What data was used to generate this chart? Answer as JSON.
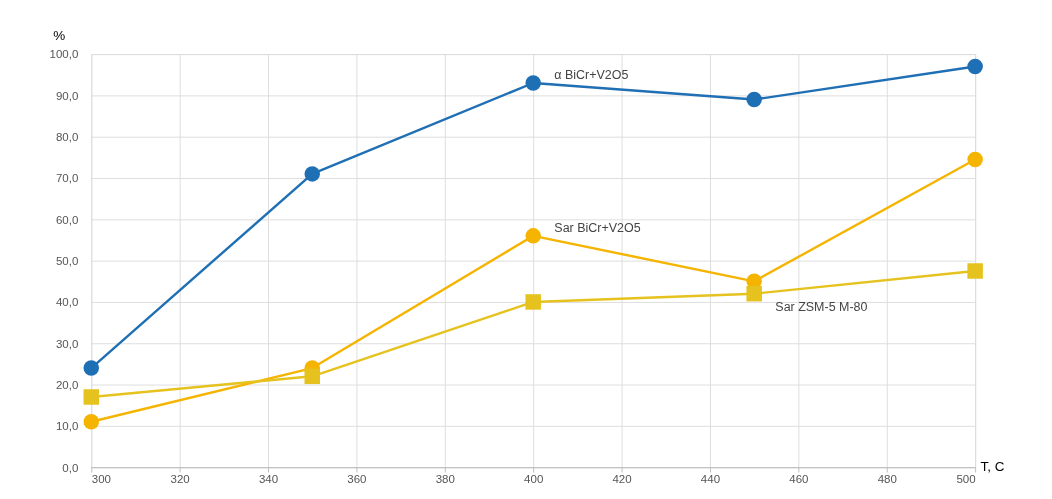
{
  "chart_data": {
    "type": "line",
    "xlabel": "T, C",
    "ylabel": "%",
    "x": [
      300,
      350,
      400,
      450,
      500
    ],
    "series": [
      {
        "name": "α BiCr+V2O5",
        "color": "#1f6fb5",
        "marker": "circle",
        "values": [
          24,
          71,
          93,
          89,
          97
        ]
      },
      {
        "name": "Sar BiCr+V2O5",
        "color": "#f5b400",
        "marker": "circle",
        "values": [
          11,
          24,
          56,
          45,
          74.5
        ]
      },
      {
        "name": "Sar ZSM-5 M-80",
        "color": "#e6c21e",
        "marker": "square",
        "values": [
          17,
          22,
          40,
          42,
          47.5
        ]
      }
    ],
    "xlim": [
      300,
      500
    ],
    "xticks": [
      300,
      320,
      340,
      360,
      380,
      400,
      420,
      440,
      460,
      480,
      500
    ],
    "ylim": [
      0,
      100
    ],
    "yticks": [
      {
        "value": 0,
        "label": "0,0"
      },
      {
        "value": 10,
        "label": "10,0"
      },
      {
        "value": 20,
        "label": "20,0"
      },
      {
        "value": 30,
        "label": "30,0"
      },
      {
        "value": 40,
        "label": "40,0"
      },
      {
        "value": 50,
        "label": "50,0"
      },
      {
        "value": 60,
        "label": "60,0"
      },
      {
        "value": 70,
        "label": "70,0"
      },
      {
        "value": 80,
        "label": "80,0"
      },
      {
        "value": 90,
        "label": "90,0"
      },
      {
        "value": 100,
        "label": "100,0"
      }
    ],
    "grid": true,
    "legend": false,
    "line_style": "solid"
  }
}
